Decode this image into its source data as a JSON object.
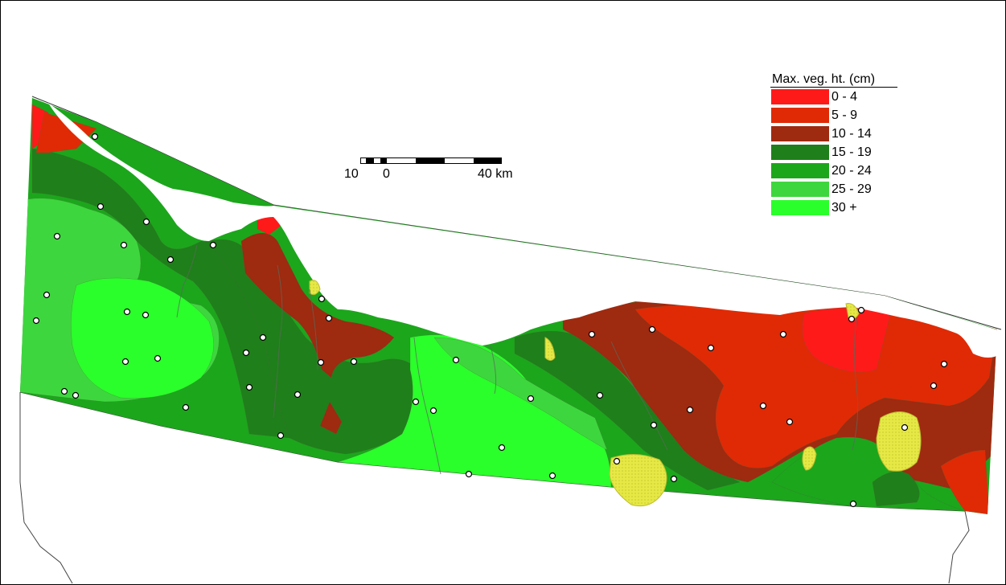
{
  "legend": {
    "title": "Max. veg. ht. (cm)",
    "classes": [
      {
        "label": "0 -  4",
        "color": "#ff1a1a"
      },
      {
        "label": "5 -  9",
        "color": "#e02a05"
      },
      {
        "label": "10 - 14",
        "color": "#9e2a10"
      },
      {
        "label": "15 - 19",
        "color": "#1f7f1a"
      },
      {
        "label": "20 - 24",
        "color": "#1ca61c"
      },
      {
        "label": "25 - 29",
        "color": "#3ed63e"
      },
      {
        "label": "30 +",
        "color": "#2bff2b"
      }
    ]
  },
  "scale": {
    "label_left": "10",
    "label_zero": "0",
    "label_right": "40 km"
  },
  "colors": {
    "sea": "#ffffff",
    "highlight_patch": "#e6e845",
    "site_marker": "#ffffff"
  },
  "icons": {
    "site": "site-marker-icon"
  }
}
